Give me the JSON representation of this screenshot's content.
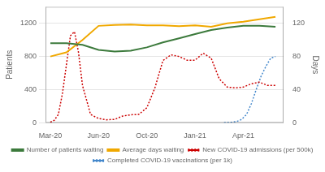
{
  "chart_data": {
    "type": "line",
    "y_label": "Patients",
    "y2_label": "Days",
    "xlim": [
      -0.3,
      14.5
    ],
    "xticks": [
      {
        "value": 0,
        "label": "Mar-20"
      },
      {
        "value": 3,
        "label": "Jun-20"
      },
      {
        "value": 6,
        "label": "Oct-20"
      },
      {
        "value": 9,
        "label": "Jan-21"
      },
      {
        "value": 12,
        "label": "Apr-21"
      }
    ],
    "ylim": [
      0,
      1400
    ],
    "yticks": [
      0,
      400,
      800,
      1200
    ],
    "y2lim": [
      0,
      140
    ],
    "y2ticks": [
      0,
      40,
      80,
      120
    ],
    "grid": true,
    "legend": "bottom",
    "series": [
      {
        "name": "Number of patients waiting",
        "color": "#3c7a3c",
        "line_style": "solid",
        "x": [
          0,
          1,
          2,
          3,
          4,
          5,
          6,
          7,
          8,
          9,
          10,
          11,
          12,
          13,
          14
        ],
        "values": [
          960,
          960,
          940,
          880,
          860,
          870,
          910,
          970,
          1020,
          1070,
          1120,
          1150,
          1170,
          1170,
          1160
        ]
      },
      {
        "name": "Average days waiting",
        "color": "#f0a800",
        "line_style": "solid",
        "x": [
          0,
          1,
          2,
          3,
          4,
          5,
          6,
          7,
          8,
          9,
          10,
          11,
          12,
          13,
          14
        ],
        "values": [
          800,
          850,
          1000,
          1170,
          1180,
          1185,
          1175,
          1175,
          1165,
          1175,
          1160,
          1200,
          1220,
          1250,
          1280
        ]
      },
      {
        "name": "New COVID-19 admissions (per 500k)",
        "color": "#cc0000",
        "line_style": "dotted",
        "x": [
          0,
          0.25,
          0.5,
          0.75,
          1.0,
          1.25,
          1.5,
          1.75,
          2.0,
          2.5,
          3.0,
          3.5,
          4.0,
          4.5,
          5.0,
          5.5,
          6.0,
          6.5,
          7.0,
          7.5,
          8.0,
          8.5,
          9.0,
          9.5,
          10.0,
          10.5,
          11.0,
          11.5,
          12.0,
          12.5,
          13.0,
          13.5,
          14.0
        ],
        "values": [
          5,
          30,
          100,
          350,
          700,
          1050,
          1100,
          850,
          450,
          100,
          50,
          35,
          40,
          80,
          95,
          100,
          180,
          420,
          750,
          820,
          800,
          755,
          755,
          840,
          780,
          530,
          430,
          420,
          430,
          470,
          490,
          450,
          450
        ]
      },
      {
        "name": "Completed COVID-19 vaccinations (per 1k)",
        "color": "#4488cc",
        "line_style": "dotted",
        "x": [
          10.8,
          11.0,
          11.3,
          11.6,
          11.9,
          12.2,
          12.5,
          12.8,
          13.1,
          13.4,
          13.7,
          14.0
        ],
        "values": [
          0,
          2,
          5,
          15,
          40,
          100,
          230,
          400,
          560,
          680,
          780,
          800
        ]
      }
    ]
  }
}
